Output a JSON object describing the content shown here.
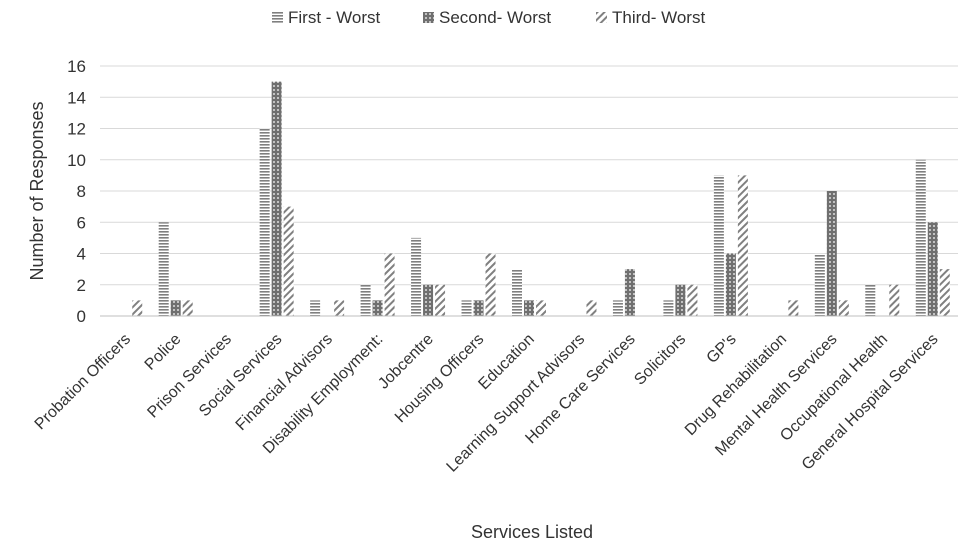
{
  "chart_data": {
    "type": "bar",
    "title": "",
    "xlabel": "Services Listed",
    "ylabel": "Number of Responses",
    "ylim": [
      0,
      16
    ],
    "yticks": [
      0,
      2,
      4,
      6,
      8,
      10,
      12,
      14,
      16
    ],
    "grid": true,
    "legend_position": "top",
    "categories": [
      "Probation Officers",
      "Police",
      "Prison Services",
      "Social Services",
      "Financial Advisors",
      "Disability Employment:",
      "Jobcentre",
      "Housing Officers",
      "Education",
      "Learning Support Advisors",
      "Home Care Services",
      "Solicitors",
      "GP's",
      "Drug Rehabilitation",
      "Mental Health Services",
      "Occupational Health",
      "General Hospital Services"
    ],
    "series": [
      {
        "name": "First - Worst",
        "pattern": "horizontal-lines",
        "values": [
          0,
          6,
          0,
          12,
          1,
          2,
          5,
          1,
          3,
          0,
          1,
          1,
          9,
          0,
          4,
          2,
          10
        ]
      },
      {
        "name": "Second- Worst",
        "pattern": "dots",
        "values": [
          0,
          1,
          0,
          15,
          0,
          1,
          2,
          1,
          1,
          0,
          3,
          2,
          4,
          0,
          8,
          0,
          6
        ]
      },
      {
        "name": "Third- Worst",
        "pattern": "diagonal-lines",
        "values": [
          1,
          1,
          0,
          7,
          1,
          4,
          2,
          4,
          1,
          1,
          0,
          2,
          9,
          1,
          1,
          2,
          3
        ]
      }
    ],
    "colors": {
      "grid": "#d9d9d9",
      "bar": "#7f7f7f",
      "text": "#333333"
    }
  }
}
